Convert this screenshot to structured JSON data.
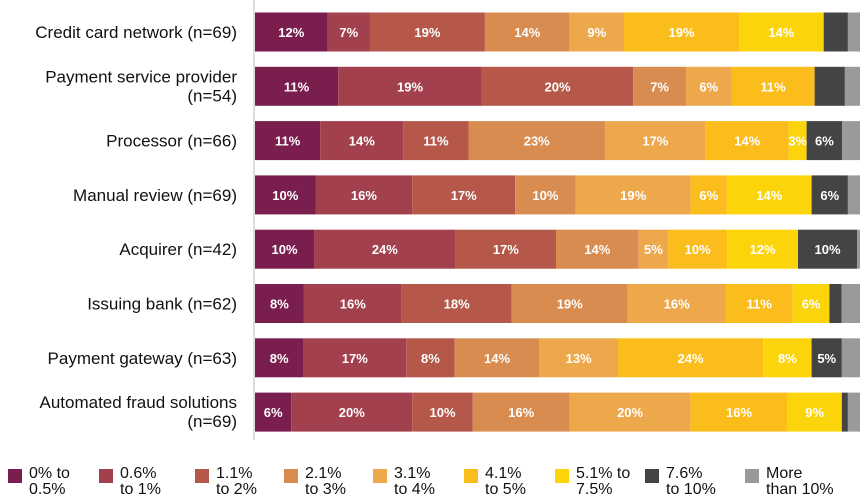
{
  "chart_data": {
    "type": "bar",
    "orientation": "horizontal",
    "stacked": true,
    "categories": [
      "Credit card network (n=69)",
      "Payment service provider (n=54)",
      "Processor (n=66)",
      "Manual review (n=69)",
      "Acquirer (n=42)",
      "Issuing bank (n=62)",
      "Payment gateway (n=63)",
      "Automated fraud solutions (n=69)"
    ],
    "category_lines": [
      [
        "Credit card network (n=69)"
      ],
      [
        "Payment service provider",
        "(n=54)"
      ],
      [
        "Processor (n=66)"
      ],
      [
        "Manual review (n=69)"
      ],
      [
        "Acquirer (n=42)"
      ],
      [
        "Issuing bank (n=62)"
      ],
      [
        "Payment gateway (n=63)"
      ],
      [
        "Automated fraud solutions",
        "(n=69)"
      ]
    ],
    "series": [
      {
        "name": "0% to 0.5%",
        "color": "#7a1e4e",
        "values": [
          12,
          11,
          11,
          10,
          10,
          8,
          8,
          6
        ],
        "labels": [
          "12%",
          "11%",
          "11%",
          "10%",
          "10%",
          "8%",
          "8%",
          "6%"
        ]
      },
      {
        "name": "0.6% to 1%",
        "color": "#a3404e",
        "values": [
          7,
          19,
          14,
          16,
          24,
          16,
          17,
          20
        ],
        "labels": [
          "7%",
          "19%",
          "14%",
          "16%",
          "24%",
          "16%",
          "17%",
          "20%"
        ]
      },
      {
        "name": "1.1% to 2%",
        "color": "#b5584a",
        "values": [
          19,
          20,
          11,
          17,
          17,
          18,
          8,
          10
        ],
        "labels": [
          "19%",
          "20%",
          "11%",
          "17%",
          "17%",
          "18%",
          "8%",
          "10%"
        ]
      },
      {
        "name": "2.1% to 3%",
        "color": "#d98c4f",
        "values": [
          14,
          7,
          23,
          10,
          14,
          19,
          14,
          16
        ],
        "labels": [
          "14%",
          "7%",
          "23%",
          "10%",
          "14%",
          "19%",
          "14%",
          "16%"
        ]
      },
      {
        "name": "3.1% to 4%",
        "color": "#eda84c",
        "values": [
          9,
          6,
          17,
          19,
          5,
          16,
          13,
          20
        ],
        "labels": [
          "9%",
          "6%",
          "17%",
          "19%",
          "5%",
          "16%",
          "13%",
          "20%"
        ]
      },
      {
        "name": "4.1% to 5%",
        "color": "#fbbd1c",
        "values": [
          19,
          11,
          14,
          6,
          10,
          11,
          24,
          16
        ],
        "labels": [
          "19%",
          "11%",
          "14%",
          "6%",
          "10%",
          "11%",
          "24%",
          "16%"
        ]
      },
      {
        "name": "5.1% to 7.5%",
        "color": "#fbd40a",
        "values": [
          14,
          0,
          3,
          14,
          12,
          6,
          8,
          9
        ],
        "labels": [
          "14%",
          "",
          "3%",
          "14%",
          "12%",
          "6%",
          "8%",
          "9%"
        ]
      },
      {
        "name": "7.6% to 10%",
        "color": "#444444",
        "values": [
          4,
          4,
          6,
          6,
          10,
          2,
          5,
          1
        ],
        "labels": [
          "",
          "",
          "6%",
          "6%",
          "10%",
          "",
          "5%",
          ""
        ]
      },
      {
        "name": "More than 10%",
        "color": "#9a9a9a",
        "values": [
          2,
          2,
          3,
          2,
          0.5,
          3,
          3,
          2
        ],
        "labels": [
          "",
          "",
          "",
          "",
          "",
          "",
          "",
          ""
        ]
      }
    ],
    "legend_position": "bottom",
    "legend": [
      {
        "line1": "0% to",
        "line2": "0.5%"
      },
      {
        "line1": "0.6%",
        "line2": "to 1%"
      },
      {
        "line1": "1.1%",
        "line2": "to 2%"
      },
      {
        "line1": "2.1%",
        "line2": "to 3%"
      },
      {
        "line1": "3.1%",
        "line2": "to 4%"
      },
      {
        "line1": "4.1%",
        "line2": "to 5%"
      },
      {
        "line1": "5.1% to",
        "line2": "7.5%"
      },
      {
        "line1": "7.6%",
        "line2": "to 10%"
      },
      {
        "line1": "More",
        "line2": "than 10%"
      }
    ],
    "xlim": [
      0,
      100
    ],
    "grid": false,
    "title": "",
    "xlabel": "",
    "ylabel": ""
  }
}
